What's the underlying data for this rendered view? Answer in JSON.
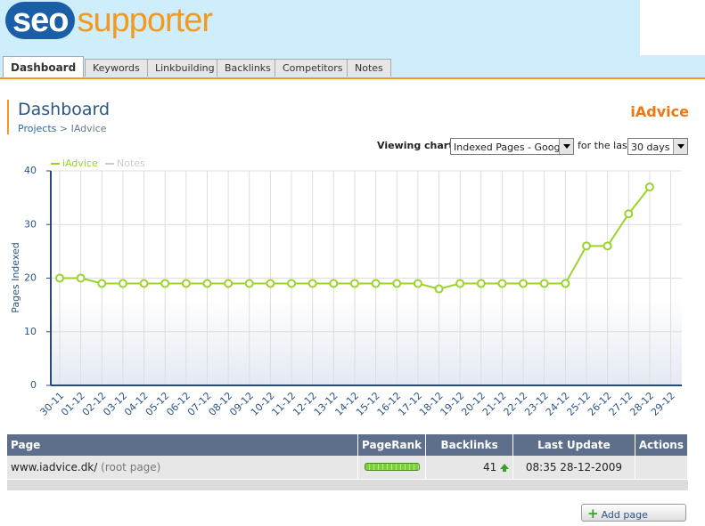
{
  "header": {
    "logo": [
      "seo",
      "supporter"
    ]
  },
  "tabs": [
    "Dashboard",
    "Keywords",
    "Linkbuilding",
    "Backlinks",
    "Competitors",
    "Notes"
  ],
  "page": {
    "title": "Dashboard",
    "breadcrumb": {
      "items": [
        "Projects",
        "IAdvice"
      ],
      "separator": ">"
    },
    "project": "iAdvice",
    "controls": {
      "viewing_label": "Viewing chart:",
      "chart_select": "Indexed Pages - Google",
      "period_label": "for the last",
      "period_select": "30 days"
    }
  },
  "chart_data": {
    "type": "line",
    "y_label": "Pages Indexed",
    "categories": [
      "30-11",
      "01-12",
      "02-12",
      "03-12",
      "04-12",
      "05-12",
      "06-12",
      "07-12",
      "08-12",
      "09-12",
      "10-12",
      "11-12",
      "12-12",
      "13-12",
      "14-12",
      "15-12",
      "16-12",
      "17-12",
      "18-12",
      "19-12",
      "20-12",
      "21-12",
      "22-12",
      "23-12",
      "24-12",
      "25-12",
      "26-12",
      "27-12",
      "28-12",
      "29-12"
    ],
    "series": [
      {
        "name": "iAdvice",
        "color": "#9ad42a",
        "values": [
          20,
          20,
          19,
          19,
          19,
          19,
          19,
          19,
          19,
          19,
          19,
          19,
          19,
          19,
          19,
          19,
          19,
          19,
          18,
          19,
          19,
          19,
          19,
          19,
          19,
          26,
          26,
          32,
          37,
          null
        ]
      },
      {
        "name": "Notes",
        "color": "#cccccc",
        "values": [
          null,
          null,
          null,
          null,
          null,
          null,
          null,
          null,
          null,
          null,
          null,
          null,
          null,
          null,
          null,
          null,
          null,
          null,
          null,
          null,
          null,
          null,
          null,
          null,
          null,
          null,
          null,
          null,
          null,
          null
        ]
      }
    ],
    "ylim": [
      0,
      40
    ],
    "yticks": [
      0,
      10,
      20,
      30,
      40
    ],
    "grid": true
  },
  "table": {
    "columns": [
      "Page",
      "PageRank",
      "Backlinks",
      "Last Update",
      "Actions"
    ],
    "rows": [
      {
        "page": "www.iadvice.dk/",
        "note": "(root page)",
        "backlinks": 41,
        "last_update": "08:35 28-12-2009"
      }
    ]
  },
  "button": "Add page"
}
